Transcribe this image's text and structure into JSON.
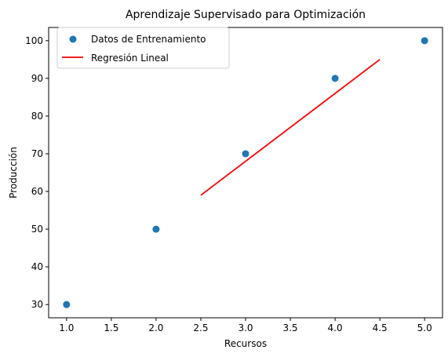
{
  "chart_data": {
    "type": "scatter",
    "title": "Aprendizaje Supervisado para Optimización",
    "xlabel": "Recursos",
    "ylabel": "Producción",
    "xlim": [
      0.8,
      5.2
    ],
    "ylim": [
      26.5,
      103.5
    ],
    "xticks": [
      1.0,
      1.5,
      2.0,
      2.5,
      3.0,
      3.5,
      4.0,
      4.5,
      5.0
    ],
    "yticks": [
      30,
      40,
      50,
      60,
      70,
      80,
      90,
      100
    ],
    "xtick_labels": [
      "1.0",
      "1.5",
      "2.0",
      "2.5",
      "3.0",
      "3.5",
      "4.0",
      "4.5",
      "5.0"
    ],
    "ytick_labels": [
      "30",
      "40",
      "50",
      "60",
      "70",
      "80",
      "90",
      "100"
    ],
    "grid": false,
    "legend_position": "top-left",
    "series": [
      {
        "name": "Datos de Entrenamiento",
        "kind": "scatter",
        "color": "#1f77b4",
        "x": [
          1,
          2,
          3,
          4,
          5
        ],
        "y": [
          30,
          50,
          70,
          90,
          100
        ]
      },
      {
        "name": "Regresión Lineal",
        "kind": "line",
        "color": "#ff0000",
        "x": [
          2.5,
          4.5
        ],
        "y": [
          59,
          95
        ]
      }
    ]
  }
}
